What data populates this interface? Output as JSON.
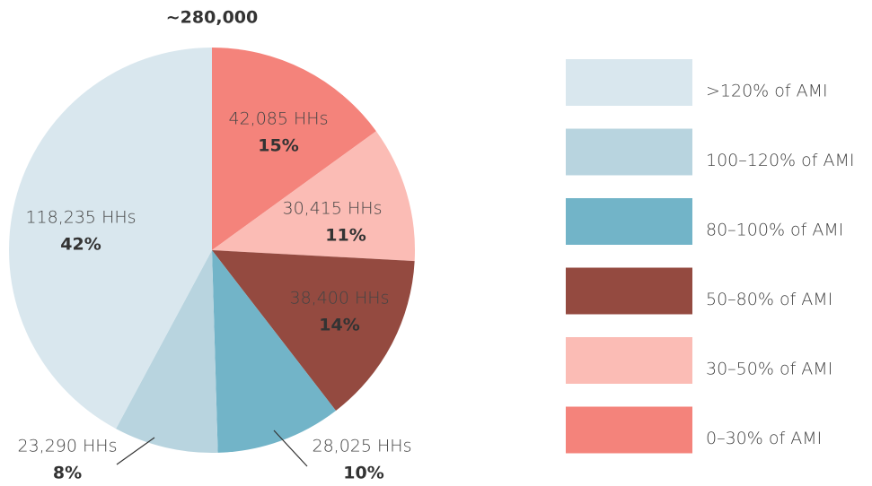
{
  "chart_data": {
    "type": "pie",
    "title": "~280,000",
    "categories": [
      "0–30% of AMI",
      "30–50% of AMI",
      "50–80% of AMI",
      "80–100% of AMI",
      "100–120% of AMI",
      ">120% of AMI"
    ],
    "values": [
      42085,
      30415,
      38400,
      28025,
      23290,
      118235
    ],
    "value_labels": [
      "42,085 HHs",
      "30,415 HHs",
      "38,400 HHs",
      "28,025 HHs",
      "23,290 HHs",
      "118,235 HHs"
    ],
    "percent_labels": [
      "15%",
      "11%",
      "14%",
      "10%",
      "8%",
      "42%"
    ],
    "colors": [
      "#f4837b",
      "#fbbcb5",
      "#944a40",
      "#72b4c8",
      "#b8d4df",
      "#d9e7ee"
    ],
    "legend": "right"
  }
}
